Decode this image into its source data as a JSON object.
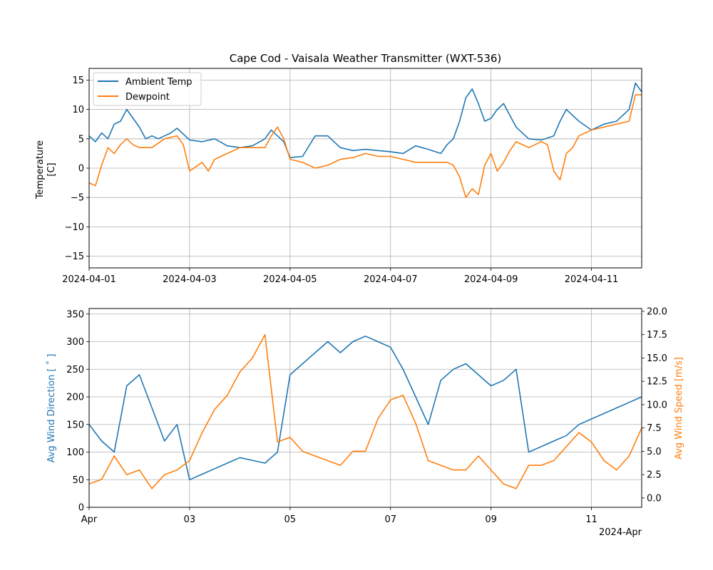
{
  "chart_data": [
    {
      "type": "line",
      "title": "Cape Cod - Vaisala Weather Transmitter (WXT-536)",
      "xlabel": "",
      "ylabel": [
        "Temperature",
        "[C]"
      ],
      "xlim": [
        "2024-04-01",
        "2024-04-12"
      ],
      "ylim": [
        -17,
        17
      ],
      "xtick_labels": [
        "2024-04-01",
        "2024-04-03",
        "2024-04-05",
        "2024-04-07",
        "2024-04-09",
        "2024-04-11"
      ],
      "ytick_labels": [
        "15",
        "10",
        "5",
        "0",
        "−5",
        "−10",
        "−15"
      ],
      "yticks": [
        15,
        10,
        5,
        0,
        -5,
        -10,
        -15
      ],
      "grid": true,
      "legend": "top-left",
      "series": [
        {
          "name": "Ambient Temp",
          "color": "#1f77b4",
          "x": [
            "2024-04-01T00:00",
            "2024-04-01T03:00",
            "2024-04-01T06:00",
            "2024-04-01T09:00",
            "2024-04-01T12:00",
            "2024-04-01T15:00",
            "2024-04-01T18:00",
            "2024-04-01T21:00",
            "2024-04-02T00:00",
            "2024-04-02T03:00",
            "2024-04-02T06:00",
            "2024-04-02T09:00",
            "2024-04-02T12:00",
            "2024-04-02T15:00",
            "2024-04-02T18:00",
            "2024-04-02T21:00",
            "2024-04-03T00:00",
            "2024-04-03T06:00",
            "2024-04-03T12:00",
            "2024-04-03T18:00",
            "2024-04-04T00:00",
            "2024-04-04T06:00",
            "2024-04-04T12:00",
            "2024-04-04T15:00",
            "2024-04-04T18:00",
            "2024-04-04T21:00",
            "2024-04-05T00:00",
            "2024-04-05T06:00",
            "2024-04-05T12:00",
            "2024-04-05T18:00",
            "2024-04-06T00:00",
            "2024-04-06T06:00",
            "2024-04-06T12:00",
            "2024-04-06T18:00",
            "2024-04-07T00:00",
            "2024-04-07T06:00",
            "2024-04-07T12:00",
            "2024-04-07T18:00",
            "2024-04-08T00:00",
            "2024-04-08T03:00",
            "2024-04-08T06:00",
            "2024-04-08T09:00",
            "2024-04-08T12:00",
            "2024-04-08T15:00",
            "2024-04-08T18:00",
            "2024-04-08T21:00",
            "2024-04-09T00:00",
            "2024-04-09T03:00",
            "2024-04-09T06:00",
            "2024-04-09T09:00",
            "2024-04-09T12:00",
            "2024-04-09T18:00",
            "2024-04-10T00:00",
            "2024-04-10T06:00",
            "2024-04-10T09:00",
            "2024-04-10T12:00",
            "2024-04-10T15:00",
            "2024-04-10T18:00",
            "2024-04-11T00:00",
            "2024-04-11T06:00",
            "2024-04-11T12:00",
            "2024-04-11T18:00",
            "2024-04-11T21:00",
            "2024-04-12T00:00"
          ],
          "y": [
            5.5,
            4.5,
            6.0,
            5.0,
            7.5,
            8.0,
            10.0,
            8.5,
            7.0,
            5.0,
            5.5,
            5.0,
            5.5,
            6.0,
            6.8,
            5.8,
            4.8,
            4.5,
            5.0,
            3.8,
            3.5,
            3.8,
            5.0,
            6.5,
            5.5,
            4.5,
            1.8,
            2.0,
            5.5,
            5.5,
            3.5,
            3.0,
            3.2,
            3.0,
            2.8,
            2.5,
            3.8,
            3.2,
            2.5,
            4.0,
            5.0,
            8.0,
            12.0,
            13.5,
            11.0,
            8.0,
            8.5,
            10.0,
            11.0,
            9.0,
            7.0,
            5.0,
            4.8,
            5.5,
            8.0,
            10.0,
            9.0,
            8.0,
            6.5,
            7.5,
            8.0,
            10.0,
            14.5,
            13.0
          ]
        },
        {
          "name": "Dewpoint",
          "color": "#ff7f0e",
          "x": [
            "2024-04-01T00:00",
            "2024-04-01T03:00",
            "2024-04-01T06:00",
            "2024-04-01T09:00",
            "2024-04-01T12:00",
            "2024-04-01T15:00",
            "2024-04-01T18:00",
            "2024-04-01T21:00",
            "2024-04-02T00:00",
            "2024-04-02T06:00",
            "2024-04-02T12:00",
            "2024-04-02T18:00",
            "2024-04-02T21:00",
            "2024-04-03T00:00",
            "2024-04-03T06:00",
            "2024-04-03T09:00",
            "2024-04-03T12:00",
            "2024-04-03T18:00",
            "2024-04-04T00:00",
            "2024-04-04T06:00",
            "2024-04-04T12:00",
            "2024-04-04T15:00",
            "2024-04-04T18:00",
            "2024-04-04T21:00",
            "2024-04-05T00:00",
            "2024-04-05T06:00",
            "2024-04-05T12:00",
            "2024-04-05T18:00",
            "2024-04-06T00:00",
            "2024-04-06T06:00",
            "2024-04-06T12:00",
            "2024-04-06T18:00",
            "2024-04-07T00:00",
            "2024-04-07T06:00",
            "2024-04-07T12:00",
            "2024-04-07T18:00",
            "2024-04-08T00:00",
            "2024-04-08T03:00",
            "2024-04-08T06:00",
            "2024-04-08T09:00",
            "2024-04-08T12:00",
            "2024-04-08T15:00",
            "2024-04-08T18:00",
            "2024-04-08T21:00",
            "2024-04-09T00:00",
            "2024-04-09T03:00",
            "2024-04-09T06:00",
            "2024-04-09T09:00",
            "2024-04-09T12:00",
            "2024-04-09T18:00",
            "2024-04-10T00:00",
            "2024-04-10T03:00",
            "2024-04-10T06:00",
            "2024-04-10T09:00",
            "2024-04-10T12:00",
            "2024-04-10T15:00",
            "2024-04-10T18:00",
            "2024-04-11T00:00",
            "2024-04-11T06:00",
            "2024-04-11T12:00",
            "2024-04-11T18:00",
            "2024-04-11T21:00",
            "2024-04-12T00:00"
          ],
          "y": [
            -2.5,
            -3.0,
            0.5,
            3.5,
            2.5,
            4.0,
            5.0,
            4.0,
            3.5,
            3.5,
            5.0,
            5.5,
            4.0,
            -0.5,
            1.0,
            -0.5,
            1.5,
            2.5,
            3.5,
            3.5,
            3.5,
            5.5,
            7.0,
            5.0,
            1.5,
            1.0,
            0.0,
            0.5,
            1.5,
            1.8,
            2.5,
            2.0,
            2.0,
            1.5,
            1.0,
            1.0,
            1.0,
            1.0,
            0.5,
            -1.5,
            -5.0,
            -3.5,
            -4.5,
            0.5,
            2.5,
            -0.5,
            1.0,
            3.0,
            4.5,
            3.5,
            4.5,
            4.0,
            -0.5,
            -2.0,
            2.5,
            3.5,
            5.5,
            6.5,
            7.0,
            7.5,
            8.0,
            12.5,
            12.5
          ]
        }
      ]
    },
    {
      "type": "line",
      "title": "",
      "xlim": [
        "2024-04-01",
        "2024-04-12"
      ],
      "xtick_labels": [
        "Apr",
        "03",
        "05",
        "07",
        "09",
        "11"
      ],
      "x_offset_label": "2024-Apr",
      "ylabel": "Avg Wind Direction [$^\\circ$]",
      "ylabel_display": "Avg Wind Direction [ ˚ ]",
      "ylim": [
        0,
        360
      ],
      "ytick_labels": [
        "0",
        "50",
        "100",
        "150",
        "200",
        "250",
        "300",
        "350"
      ],
      "yticks": [
        0,
        50,
        100,
        150,
        200,
        250,
        300,
        350
      ],
      "ylabel_right": "Avg Wind Speed [m/s]",
      "ylim_right": [
        -1,
        20.3
      ],
      "ytick_labels_right": [
        "0.0",
        "2.5",
        "5.0",
        "7.5",
        "10.0",
        "12.5",
        "15.0",
        "17.5",
        "20.0"
      ],
      "yticks_right": [
        0,
        2.5,
        5,
        7.5,
        10,
        12.5,
        15,
        17.5,
        20
      ],
      "grid": true,
      "series": [
        {
          "name": "Avg Wind Direction",
          "axis": "left",
          "color": "#1f77b4",
          "x": [
            "2024-04-01T00:00",
            "2024-04-01T06:00",
            "2024-04-01T12:00",
            "2024-04-01T18:00",
            "2024-04-02T00:00",
            "2024-04-02T06:00",
            "2024-04-02T12:00",
            "2024-04-02T18:00",
            "2024-04-03T00:00",
            "2024-04-03T06:00",
            "2024-04-03T12:00",
            "2024-04-03T18:00",
            "2024-04-04T00:00",
            "2024-04-04T06:00",
            "2024-04-04T12:00",
            "2024-04-04T18:00",
            "2024-04-05T00:00",
            "2024-04-05T06:00",
            "2024-04-05T12:00",
            "2024-04-05T18:00",
            "2024-04-06T00:00",
            "2024-04-06T06:00",
            "2024-04-06T12:00",
            "2024-04-06T18:00",
            "2024-04-07T00:00",
            "2024-04-07T06:00",
            "2024-04-07T12:00",
            "2024-04-07T18:00",
            "2024-04-08T00:00",
            "2024-04-08T06:00",
            "2024-04-08T12:00",
            "2024-04-08T18:00",
            "2024-04-09T00:00",
            "2024-04-09T06:00",
            "2024-04-09T12:00",
            "2024-04-09T18:00",
            "2024-04-10T00:00",
            "2024-04-10T06:00",
            "2024-04-10T12:00",
            "2024-04-10T18:00",
            "2024-04-11T00:00",
            "2024-04-11T06:00",
            "2024-04-11T12:00",
            "2024-04-11T18:00",
            "2024-04-12T00:00"
          ],
          "y": [
            150,
            120,
            100,
            220,
            240,
            180,
            120,
            150,
            50,
            60,
            70,
            80,
            90,
            85,
            80,
            100,
            240,
            260,
            280,
            300,
            280,
            300,
            310,
            300,
            290,
            250,
            200,
            150,
            230,
            250,
            260,
            240,
            220,
            230,
            250,
            100,
            110,
            120,
            130,
            150,
            160,
            170,
            180,
            190,
            200
          ]
        },
        {
          "name": "Avg Wind Speed",
          "axis": "right",
          "color": "#ff7f0e",
          "x": [
            "2024-04-01T00:00",
            "2024-04-01T06:00",
            "2024-04-01T12:00",
            "2024-04-01T18:00",
            "2024-04-02T00:00",
            "2024-04-02T06:00",
            "2024-04-02T12:00",
            "2024-04-02T18:00",
            "2024-04-03T00:00",
            "2024-04-03T06:00",
            "2024-04-03T12:00",
            "2024-04-03T18:00",
            "2024-04-04T00:00",
            "2024-04-04T06:00",
            "2024-04-04T12:00",
            "2024-04-04T18:00",
            "2024-04-05T00:00",
            "2024-04-05T06:00",
            "2024-04-05T12:00",
            "2024-04-05T18:00",
            "2024-04-06T00:00",
            "2024-04-06T06:00",
            "2024-04-06T12:00",
            "2024-04-06T18:00",
            "2024-04-07T00:00",
            "2024-04-07T06:00",
            "2024-04-07T12:00",
            "2024-04-07T18:00",
            "2024-04-08T00:00",
            "2024-04-08T06:00",
            "2024-04-08T12:00",
            "2024-04-08T18:00",
            "2024-04-09T00:00",
            "2024-04-09T06:00",
            "2024-04-09T12:00",
            "2024-04-09T18:00",
            "2024-04-10T00:00",
            "2024-04-10T06:00",
            "2024-04-10T12:00",
            "2024-04-10T18:00",
            "2024-04-11T00:00",
            "2024-04-11T06:00",
            "2024-04-11T12:00",
            "2024-04-11T18:00",
            "2024-04-12T00:00"
          ],
          "y": [
            1.5,
            2.0,
            4.5,
            2.5,
            3.0,
            1.0,
            2.5,
            3.0,
            4.0,
            7.0,
            9.5,
            11.0,
            13.5,
            15.0,
            17.5,
            6.0,
            6.5,
            5.0,
            4.5,
            4.0,
            3.5,
            5.0,
            5.0,
            8.5,
            10.5,
            11.0,
            8.0,
            4.0,
            3.5,
            3.0,
            3.0,
            4.5,
            3.0,
            1.5,
            1.0,
            3.5,
            3.5,
            4.0,
            5.5,
            7.0,
            6.0,
            4.0,
            3.0,
            4.5,
            7.5
          ]
        }
      ]
    }
  ]
}
